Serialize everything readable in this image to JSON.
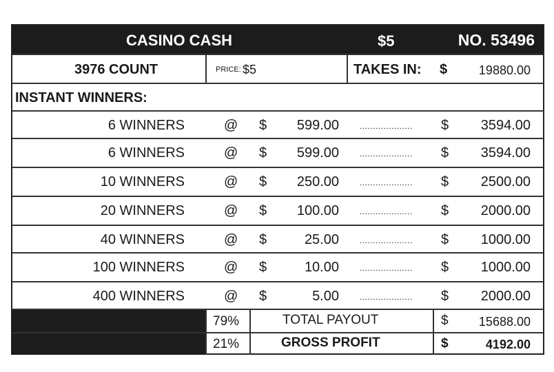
{
  "header": {
    "title": "CASINO CASH",
    "price_badge": "$5",
    "number": "NO. 53496"
  },
  "info": {
    "count": "3976 COUNT",
    "price_label": "PRICE:",
    "price_value": "$5",
    "takes_in_label": "TAKES IN:",
    "takes_in_currency": "$",
    "takes_in_value": "19880.00"
  },
  "section_label": "INSTANT WINNERS:",
  "winners": [
    {
      "count": "6 WINNERS",
      "at": "@",
      "currency": "$",
      "amount": "599.00",
      "leader": "....................",
      "total_currency": "$",
      "total": "3594.00"
    },
    {
      "count": "6 WINNERS",
      "at": "@",
      "currency": "$",
      "amount": "599.00",
      "leader": "....................",
      "total_currency": "$",
      "total": "3594.00"
    },
    {
      "count": "10 WINNERS",
      "at": "@",
      "currency": "$",
      "amount": "250.00",
      "leader": "....................",
      "total_currency": "$",
      "total": "2500.00"
    },
    {
      "count": "20 WINNERS",
      "at": "@",
      "currency": "$",
      "amount": "100.00",
      "leader": "....................",
      "total_currency": "$",
      "total": "2000.00"
    },
    {
      "count": "40 WINNERS",
      "at": "@",
      "currency": "$",
      "amount": "25.00",
      "leader": "....................",
      "total_currency": "$",
      "total": "1000.00"
    },
    {
      "count": "100 WINNERS",
      "at": "@",
      "currency": "$",
      "amount": "10.00",
      "leader": "....................",
      "total_currency": "$",
      "total": "1000.00"
    },
    {
      "count": "400 WINNERS",
      "at": "@",
      "currency": "$",
      "amount": "5.00",
      "leader": "....................",
      "total_currency": "$",
      "total": "2000.00"
    }
  ],
  "summary": [
    {
      "percent": "79%",
      "label": "TOTAL PAYOUT",
      "currency": "$",
      "value": "15688.00"
    },
    {
      "percent": "21%",
      "label": "GROSS PROFIT",
      "currency": "$",
      "value": "4192.00"
    }
  ]
}
